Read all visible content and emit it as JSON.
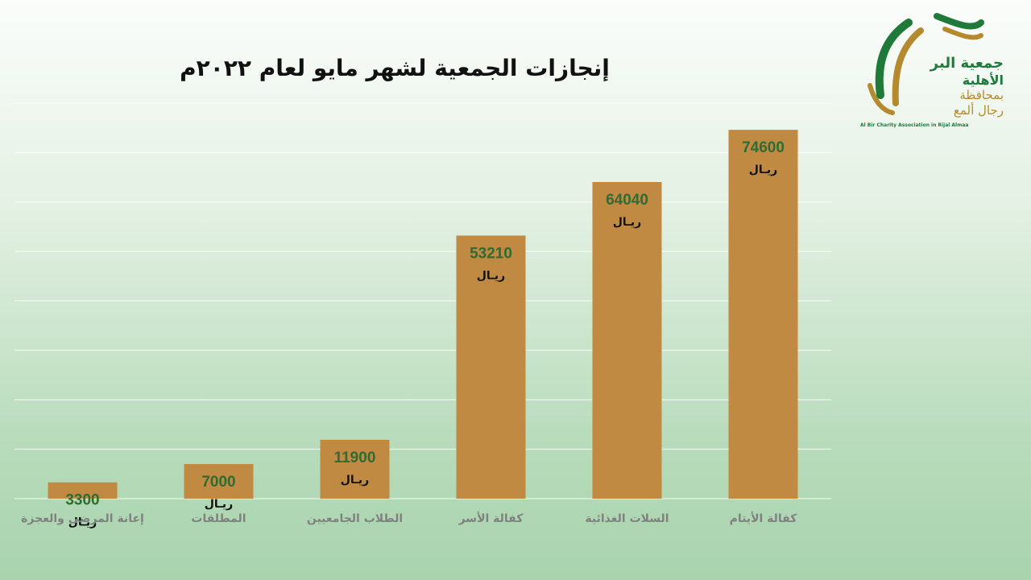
{
  "slide": {
    "title": "إنجازات الجمعية لشهر مايو لعام ٢٠٢٢م"
  },
  "logo": {
    "line1": "جمعية البر",
    "line2": "الأهلية",
    "line3": "بمحافظة",
    "line4": "رجال ألمع",
    "english": "Al Bir Charity Association in Rijal Almaa",
    "colors": {
      "green": "#1f7a3a",
      "gold": "#b58a2e"
    }
  },
  "chart_data": {
    "type": "bar",
    "categories": [
      "إعانة المرضى والعجزة",
      "المطلقات",
      "الطلاب الجامعيين",
      "كفالة الأسر",
      "السلات الغذائية",
      "كفالة الأيتام"
    ],
    "values": [
      3300,
      7000,
      11900,
      53210,
      64040,
      74600
    ],
    "unit_label": "ريـال",
    "ylim": [
      0,
      80000
    ],
    "grid": true,
    "colors": {
      "bar": "#c18a43",
      "value_text": "#2f6b33",
      "unit_text": "#111111",
      "category_text": "#808080",
      "grid": "#ffffff"
    }
  }
}
